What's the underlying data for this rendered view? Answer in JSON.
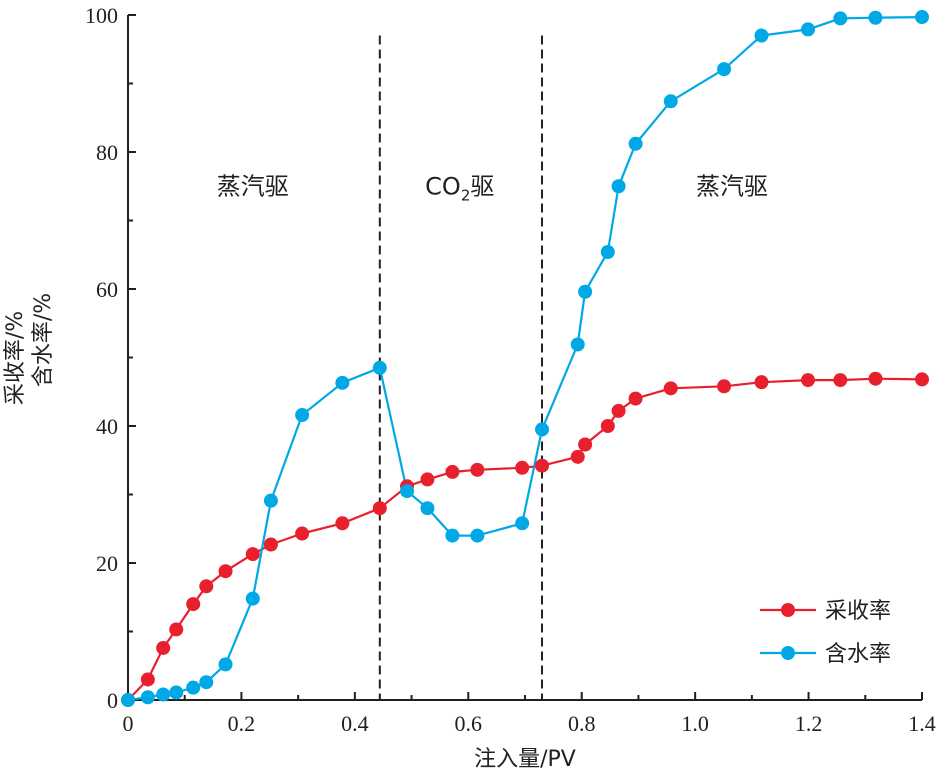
{
  "chart_data": {
    "type": "line",
    "xlabel": "注入量/PV",
    "ylabel_lines": [
      "采收率/%",
      "含水率/%"
    ],
    "xlim": [
      0,
      1.4
    ],
    "ylim": [
      0,
      100
    ],
    "x_ticks": [
      "0",
      "0.2",
      "0.4",
      "0.6",
      "0.8",
      "1.0",
      "1.2",
      "1.4"
    ],
    "y_ticks": [
      "0",
      "20",
      "40",
      "60",
      "80",
      "100"
    ],
    "grid": false,
    "legend_position": "bottom-right",
    "dividers": [
      0.444,
      0.73
    ],
    "regions": [
      {
        "label": "蒸汽驱",
        "x": 0.22,
        "y": 75
      },
      {
        "label": "CO",
        "sub": "2",
        "tail": "驱",
        "x": 0.585,
        "y": 75
      },
      {
        "label": "蒸汽驱",
        "x": 1.065,
        "y": 75
      }
    ],
    "series": [
      {
        "name": "采收率",
        "color": "#e8202e",
        "x": [
          0,
          0.035,
          0.062,
          0.085,
          0.115,
          0.138,
          0.172,
          0.22,
          0.252,
          0.307,
          0.378,
          0.444,
          0.492,
          0.528,
          0.572,
          0.616,
          0.695,
          0.73,
          0.793,
          0.806,
          0.846,
          0.865,
          0.895,
          0.957,
          1.051,
          1.117,
          1.199,
          1.256,
          1.318,
          1.4
        ],
        "values": [
          0,
          3,
          7.6,
          10.3,
          14,
          16.6,
          18.8,
          21.3,
          22.7,
          24.3,
          25.8,
          28,
          31.2,
          32.2,
          33.3,
          33.6,
          33.9,
          34.2,
          35.5,
          37.3,
          40,
          42.2,
          44,
          45.5,
          45.8,
          46.4,
          46.7,
          46.7,
          46.9,
          46.8
        ]
      },
      {
        "name": "含水率",
        "color": "#00a9e6",
        "x": [
          0,
          0.035,
          0.062,
          0.085,
          0.115,
          0.138,
          0.172,
          0.22,
          0.252,
          0.307,
          0.378,
          0.444,
          0.492,
          0.528,
          0.572,
          0.616,
          0.695,
          0.73,
          0.793,
          0.806,
          0.846,
          0.865,
          0.895,
          0.957,
          1.051,
          1.117,
          1.199,
          1.256,
          1.318,
          1.4
        ],
        "values": [
          0,
          0.4,
          0.8,
          1.1,
          1.8,
          2.6,
          5.2,
          14.8,
          29.1,
          41.6,
          46.3,
          48.5,
          30.5,
          28,
          24,
          24,
          25.8,
          39.5,
          51.9,
          59.6,
          65.4,
          75,
          81.2,
          87.4,
          92.1,
          97,
          97.9,
          99.5,
          99.6,
          99.7
        ]
      }
    ]
  }
}
